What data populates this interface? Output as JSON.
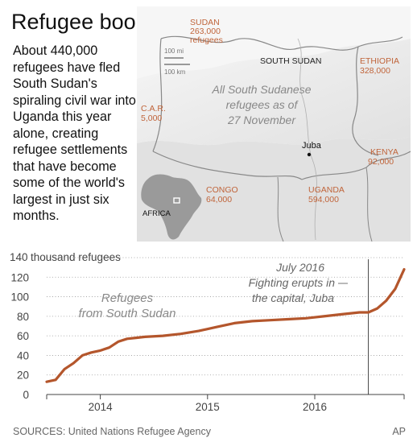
{
  "headline": "Refugee boom",
  "lede": "About 440,000 refugees have fled South Sudan's spiraling civil war into Uganda this year alone, creating refugee settlements that have become some of the world's largest in just six months.",
  "map": {
    "caption_line1": "All South Sudanese",
    "caption_line2": "refugees as of",
    "caption_line3": "27 November",
    "country_label": "SOUTH SUDAN",
    "city": "Juba",
    "inset_label": "AFRICA",
    "scale_mi": "100 mi",
    "scale_km": "100 km",
    "countries": [
      {
        "name": "SUDAN",
        "value": "263,000",
        "extra": "refugees"
      },
      {
        "name": "ETHIOPIA",
        "value": "328,000"
      },
      {
        "name": "C.A.R.",
        "value": "5,000"
      },
      {
        "name": "KENYA",
        "value": "92,000"
      },
      {
        "name": "CONGO",
        "value": "64,000"
      },
      {
        "name": "UGANDA",
        "value": "594,000"
      }
    ],
    "colors": {
      "label": "#c0643a",
      "land": "#e9e9e9",
      "border": "#8a8a8a"
    }
  },
  "chart_data": {
    "type": "line",
    "ylabel": "thousand refugees",
    "ylim": [
      0,
      140
    ],
    "yticks": [
      0,
      20,
      40,
      60,
      80,
      100,
      120,
      140
    ],
    "xticks": [
      "2014",
      "2015",
      "2016"
    ],
    "xlim": [
      "2013-07",
      "2016-11"
    ],
    "series": [
      {
        "name": "Refugees from South Sudan",
        "color": "#b4562c",
        "points": [
          [
            "2013-07",
            13
          ],
          [
            "2013-08",
            15
          ],
          [
            "2013-09",
            26
          ],
          [
            "2013-10",
            32
          ],
          [
            "2013-11",
            40
          ],
          [
            "2013-12",
            43
          ],
          [
            "2014-01",
            45
          ],
          [
            "2014-02",
            48
          ],
          [
            "2014-03",
            54
          ],
          [
            "2014-04",
            57
          ],
          [
            "2014-05",
            58
          ],
          [
            "2014-06",
            59
          ],
          [
            "2014-08",
            60
          ],
          [
            "2014-10",
            62
          ],
          [
            "2014-12",
            65
          ],
          [
            "2015-02",
            69
          ],
          [
            "2015-04",
            73
          ],
          [
            "2015-06",
            75
          ],
          [
            "2015-08",
            76
          ],
          [
            "2015-10",
            77
          ],
          [
            "2015-12",
            78
          ],
          [
            "2016-02",
            80
          ],
          [
            "2016-04",
            82
          ],
          [
            "2016-06",
            84
          ],
          [
            "2016-07",
            84
          ],
          [
            "2016-08",
            88
          ],
          [
            "2016-09",
            96
          ],
          [
            "2016-10",
            108
          ],
          [
            "2016-11",
            128
          ]
        ]
      }
    ],
    "annotations": [
      {
        "date": "2016-07",
        "line1": "July 2016",
        "line2": "Fighting erupts in",
        "line3": "the capital, Juba"
      }
    ],
    "series_label_line1": "Refugees",
    "series_label_line2": "from South Sudan",
    "grid": "dotted horizontal"
  },
  "source": "SOURCES: United Nations Refugee Agency",
  "credit": "AP"
}
